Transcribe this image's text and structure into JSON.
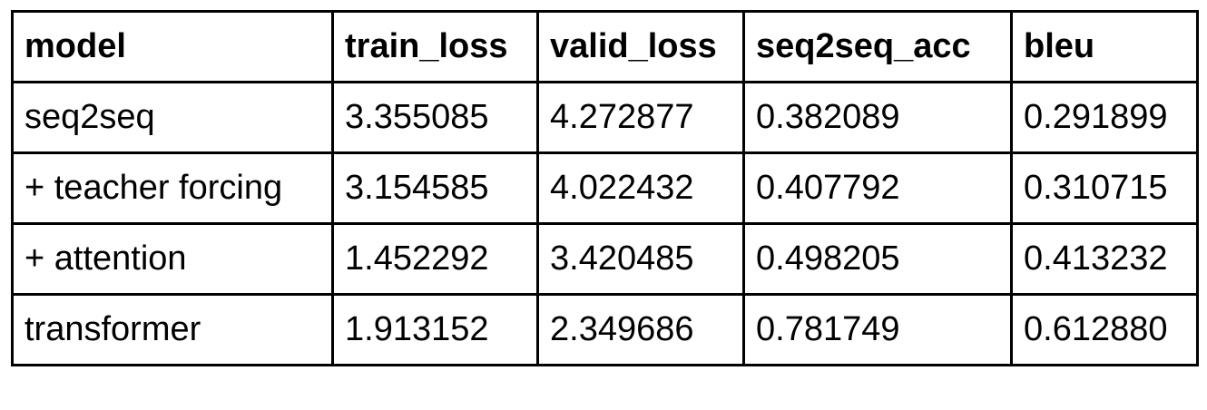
{
  "table": {
    "columns": [
      "model",
      "train_loss",
      "valid_loss",
      "seq2seq_acc",
      "bleu"
    ],
    "rows": [
      [
        "seq2seq",
        "3.355085",
        "4.272877",
        "0.382089",
        "0.291899"
      ],
      [
        "+ teacher forcing",
        "3.154585",
        "4.022432",
        "0.407792",
        "0.310715"
      ],
      [
        "+ attention",
        "1.452292",
        "3.420485",
        "0.498205",
        "0.413232"
      ],
      [
        "transformer",
        "1.913152",
        "2.349686",
        "0.781749",
        "0.612880"
      ]
    ]
  },
  "colors": {
    "border": "#000000",
    "text": "#000000",
    "background": "#ffffff"
  }
}
